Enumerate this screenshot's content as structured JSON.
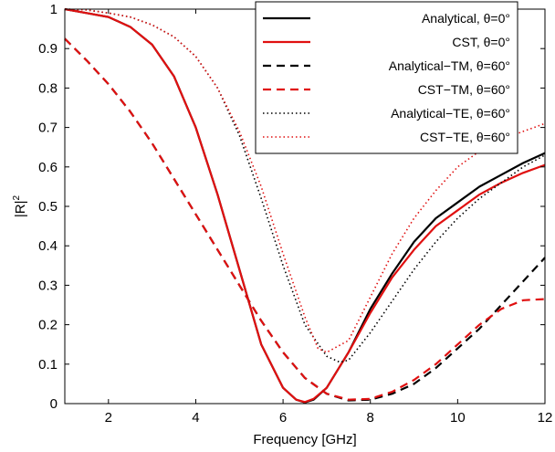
{
  "chart_data": {
    "type": "line",
    "title": "",
    "xlabel": "Frequency [GHz]",
    "ylabel_base": "|R|",
    "ylabel_sup": "2",
    "xlim": [
      1,
      12
    ],
    "ylim": [
      0,
      1
    ],
    "xticks": [
      2,
      4,
      6,
      8,
      10,
      12
    ],
    "yticks": [
      0,
      0.1,
      0.2,
      0.3,
      0.4,
      0.5,
      0.6,
      0.7,
      0.8,
      0.9,
      1
    ],
    "grid": false,
    "legend_position": "top-right",
    "series": [
      {
        "name": "Analytical, θ=0°",
        "color": "#000000",
        "style": "solid",
        "x": [
          1,
          1.5,
          2,
          2.5,
          3,
          3.5,
          4,
          4.5,
          5,
          5.5,
          6,
          6.3,
          6.5,
          6.7,
          7,
          7.5,
          8,
          8.5,
          9,
          9.5,
          10,
          10.5,
          11,
          11.5,
          12
        ],
        "y": [
          1.0,
          0.99,
          0.98,
          0.955,
          0.91,
          0.83,
          0.7,
          0.53,
          0.34,
          0.15,
          0.04,
          0.01,
          0.003,
          0.01,
          0.04,
          0.13,
          0.24,
          0.33,
          0.41,
          0.47,
          0.51,
          0.55,
          0.58,
          0.61,
          0.635
        ]
      },
      {
        "name": "CST, θ=0°",
        "color": "#e01010",
        "style": "solid",
        "x": [
          1,
          1.5,
          2,
          2.5,
          3,
          3.5,
          4,
          4.5,
          5,
          5.5,
          6,
          6.3,
          6.5,
          6.7,
          7,
          7.5,
          8,
          8.5,
          9,
          9.5,
          10,
          10.5,
          11,
          11.5,
          12
        ],
        "y": [
          1.0,
          0.99,
          0.98,
          0.955,
          0.91,
          0.83,
          0.7,
          0.53,
          0.34,
          0.15,
          0.04,
          0.01,
          0.004,
          0.012,
          0.04,
          0.13,
          0.23,
          0.32,
          0.39,
          0.45,
          0.49,
          0.53,
          0.56,
          0.585,
          0.605
        ]
      },
      {
        "name": "Analytical−TM, θ=60°",
        "color": "#000000",
        "style": "dashed",
        "x": [
          1,
          1.5,
          2,
          2.5,
          3,
          3.5,
          4,
          4.5,
          5,
          5.5,
          6,
          6.5,
          7,
          7.5,
          8,
          8.5,
          9,
          9.5,
          10,
          10.5,
          11,
          11.5,
          12
        ],
        "y": [
          0.925,
          0.87,
          0.81,
          0.74,
          0.66,
          0.57,
          0.48,
          0.39,
          0.3,
          0.21,
          0.13,
          0.065,
          0.025,
          0.008,
          0.01,
          0.025,
          0.05,
          0.09,
          0.14,
          0.19,
          0.25,
          0.31,
          0.37
        ]
      },
      {
        "name": "CST−TM, θ=60°",
        "color": "#e01010",
        "style": "dashed",
        "x": [
          1,
          1.5,
          2,
          2.5,
          3,
          3.5,
          4,
          4.5,
          5,
          5.5,
          6,
          6.5,
          7,
          7.5,
          8,
          8.5,
          9,
          9.5,
          10,
          10.5,
          11,
          11.5,
          12
        ],
        "y": [
          0.925,
          0.87,
          0.81,
          0.74,
          0.66,
          0.57,
          0.48,
          0.39,
          0.3,
          0.21,
          0.13,
          0.065,
          0.025,
          0.01,
          0.012,
          0.03,
          0.06,
          0.1,
          0.15,
          0.2,
          0.24,
          0.262,
          0.265
        ]
      },
      {
        "name": "Analytical−TE, θ=60°",
        "color": "#000000",
        "style": "dotted",
        "x": [
          1,
          1.5,
          2,
          2.5,
          3,
          3.5,
          4,
          4.5,
          5,
          5.5,
          6,
          6.5,
          7,
          7.3,
          7.5,
          8,
          8.5,
          9,
          9.5,
          10,
          10.5,
          11,
          11.5,
          12
        ],
        "y": [
          1.0,
          0.998,
          0.99,
          0.98,
          0.96,
          0.93,
          0.88,
          0.8,
          0.68,
          0.52,
          0.35,
          0.2,
          0.12,
          0.105,
          0.11,
          0.18,
          0.26,
          0.34,
          0.41,
          0.47,
          0.52,
          0.56,
          0.6,
          0.63
        ]
      },
      {
        "name": "CST−TE, θ=60°",
        "color": "#e01010",
        "style": "dotted",
        "x": [
          1,
          1.5,
          2,
          2.5,
          3,
          3.5,
          4,
          4.5,
          5,
          5.5,
          6,
          6.5,
          6.8,
          7,
          7.5,
          8,
          8.5,
          9,
          9.5,
          10,
          10.5,
          11,
          11.5,
          12
        ],
        "y": [
          1.0,
          0.998,
          0.99,
          0.98,
          0.96,
          0.93,
          0.88,
          0.8,
          0.69,
          0.55,
          0.38,
          0.22,
          0.14,
          0.13,
          0.16,
          0.27,
          0.38,
          0.47,
          0.54,
          0.6,
          0.64,
          0.67,
          0.69,
          0.71
        ]
      }
    ]
  }
}
